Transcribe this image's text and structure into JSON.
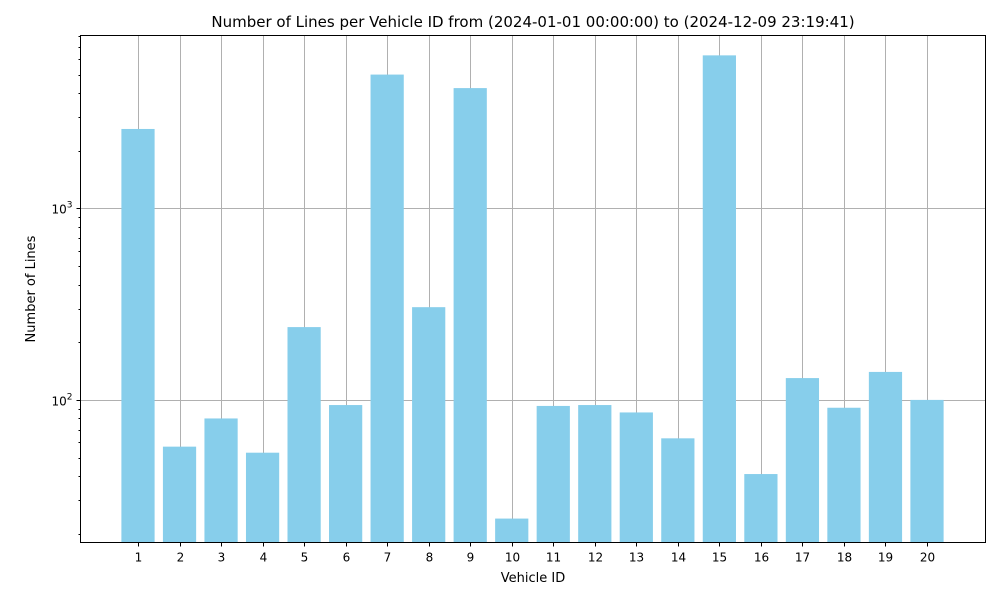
{
  "chart_data": {
    "type": "bar",
    "title": "Number of Lines per Vehicle ID from (2024-01-01 00:00:00) to (2024-12-09 23:19:41)",
    "xlabel": "Vehicle ID",
    "ylabel": "Number of Lines",
    "y_scale": "log",
    "ylim": [
      18,
      8000
    ],
    "y_ticks": [
      {
        "value": 100,
        "base": "10",
        "exponent": "2"
      },
      {
        "value": 1000,
        "base": "10",
        "exponent": "3"
      }
    ],
    "grid": true,
    "bar_color": "#87ceeb",
    "categories": [
      "1",
      "2",
      "3",
      "4",
      "5",
      "6",
      "7",
      "8",
      "9",
      "10",
      "11",
      "12",
      "13",
      "14",
      "15",
      "16",
      "17",
      "18",
      "19",
      "20"
    ],
    "values": [
      2600,
      57,
      80,
      53,
      240,
      94,
      5000,
      305,
      4250,
      24,
      93,
      94,
      86,
      63,
      6300,
      41,
      130,
      91,
      140,
      100
    ]
  }
}
